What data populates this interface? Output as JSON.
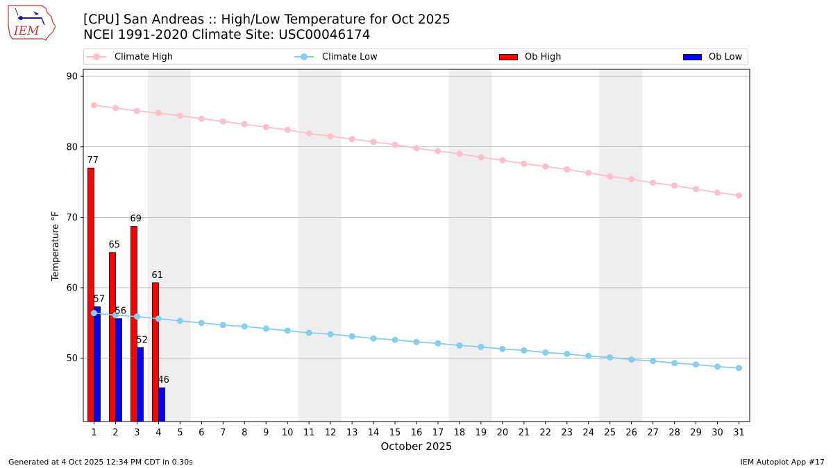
{
  "title_line1": "[CPU] San Andreas :: High/Low Temperature for Oct 2025",
  "title_line2": "NCEI 1991-2020 Climate Site: USC00046174",
  "logo_text": "IEM",
  "footer_left": "Generated at 4 Oct 2025 12:34 PM CDT in 0.30s",
  "footer_right": "IEM Autoplot App #17",
  "colors": {
    "climate_high": "#ffc0cb",
    "climate_low": "#87ceeb",
    "ob_high": "#ff0000",
    "ob_low": "#0000ff",
    "weekend_shade": "#eeeeee",
    "grid": "#b0b0b0"
  },
  "chart_data": {
    "type": "bar",
    "xlabel": "October 2025",
    "ylabel": "Temperature °F",
    "ylim": [
      41,
      91
    ],
    "yticks": [
      50,
      60,
      70,
      80,
      90
    ],
    "xlim": [
      0.5,
      31.5
    ],
    "x": [
      1,
      2,
      3,
      4,
      5,
      6,
      7,
      8,
      9,
      10,
      11,
      12,
      13,
      14,
      15,
      16,
      17,
      18,
      19,
      20,
      21,
      22,
      23,
      24,
      25,
      26,
      27,
      28,
      29,
      30,
      31
    ],
    "grid": "horizontal",
    "legend_placement": "top",
    "weekend_spans": [
      [
        3.5,
        5.5
      ],
      [
        10.5,
        12.5
      ],
      [
        17.5,
        19.5
      ],
      [
        24.5,
        26.5
      ]
    ],
    "series": [
      {
        "name": "Climate High",
        "kind": "line",
        "values": [
          85.9,
          85.5,
          85.1,
          84.8,
          84.4,
          84.0,
          83.6,
          83.2,
          82.8,
          82.4,
          81.9,
          81.5,
          81.1,
          80.7,
          80.3,
          79.8,
          79.4,
          79.0,
          78.5,
          78.1,
          77.6,
          77.2,
          76.8,
          76.3,
          75.8,
          75.4,
          74.9,
          74.5,
          74.0,
          73.5,
          73.1
        ]
      },
      {
        "name": "Climate Low",
        "kind": "line",
        "values": [
          56.4,
          56.1,
          55.9,
          55.6,
          55.3,
          55.0,
          54.7,
          54.5,
          54.2,
          53.9,
          53.6,
          53.4,
          53.1,
          52.8,
          52.6,
          52.3,
          52.1,
          51.8,
          51.6,
          51.3,
          51.1,
          50.8,
          50.6,
          50.3,
          50.1,
          49.8,
          49.6,
          49.3,
          49.1,
          48.8,
          48.6
        ]
      },
      {
        "name": "Ob High",
        "kind": "bar",
        "x": [
          1,
          2,
          3,
          4
        ],
        "values": [
          77,
          65,
          69,
          61
        ],
        "bar_heights": [
          77,
          65,
          68.7,
          60.7
        ]
      },
      {
        "name": "Ob Low",
        "kind": "bar",
        "x": [
          1,
          2,
          3,
          4
        ],
        "values": [
          57,
          56,
          52,
          46
        ],
        "bar_heights": [
          57.3,
          55.6,
          51.5,
          45.8
        ]
      }
    ]
  }
}
